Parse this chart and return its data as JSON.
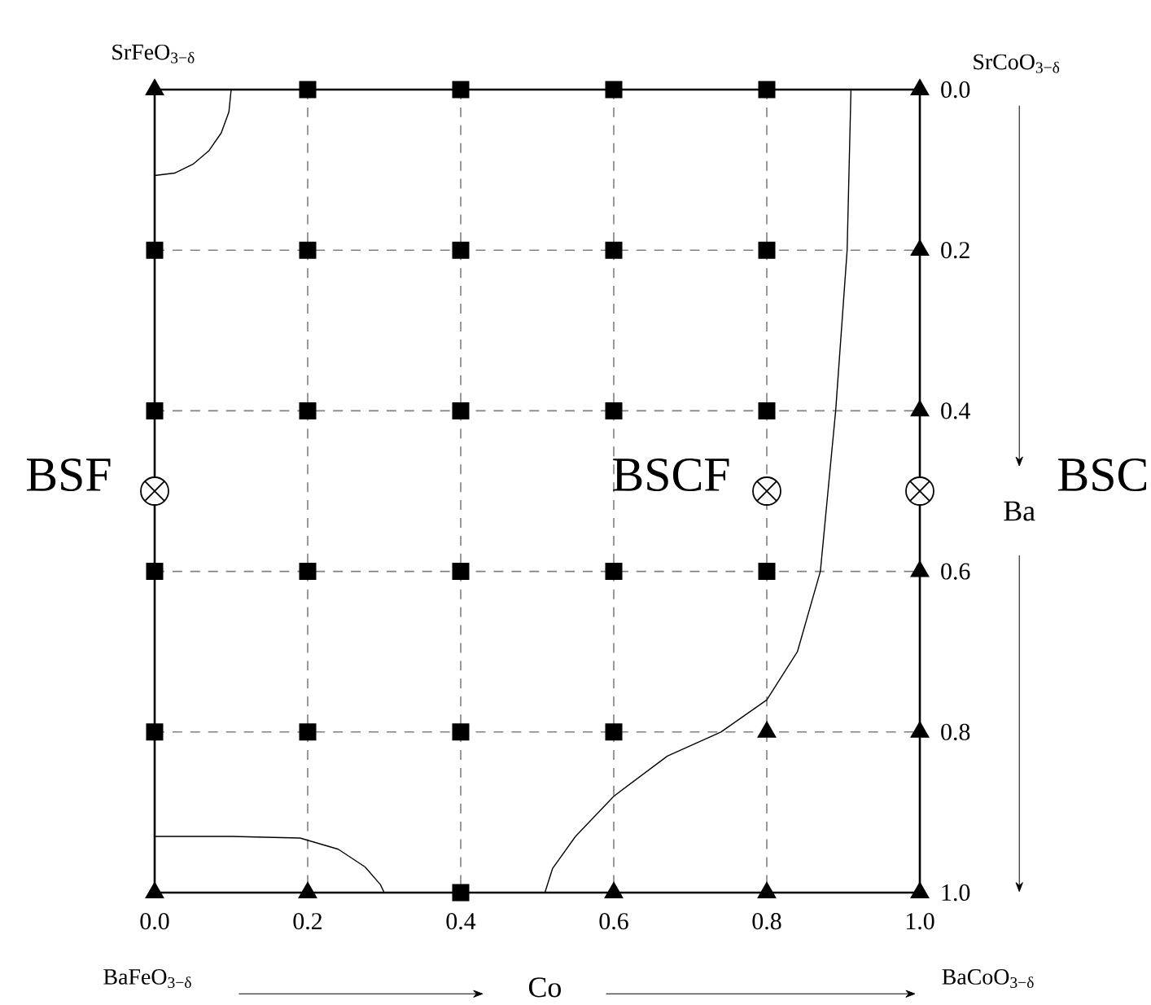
{
  "chart_data": {
    "type": "scatter",
    "xlabel": "Co",
    "ylabel": "Ba",
    "xlim": [
      0.0,
      1.0
    ],
    "ylim": [
      1.0,
      0.0
    ],
    "xticks": [
      {
        "value": 0.0,
        "label": "0.0"
      },
      {
        "value": 0.2,
        "label": "0.2"
      },
      {
        "value": 0.4,
        "label": "0.4"
      },
      {
        "value": 0.6,
        "label": "0.6"
      },
      {
        "value": 0.8,
        "label": "0.8"
      },
      {
        "value": 1.0,
        "label": "1.0"
      }
    ],
    "yticks": [
      {
        "value": 0.0,
        "label": "0.0"
      },
      {
        "value": 0.2,
        "label": "0.2"
      },
      {
        "value": 0.4,
        "label": "0.4"
      },
      {
        "value": 0.6,
        "label": "0.6"
      },
      {
        "value": 0.8,
        "label": "0.8"
      },
      {
        "value": 1.0,
        "label": "1.0"
      }
    ],
    "grid": true,
    "series": [
      {
        "marker": "square",
        "color": "#000000",
        "x": [
          0.2,
          0.4,
          0.6,
          0.8,
          0,
          0.2,
          0.4,
          0.6,
          0.8,
          0,
          0.2,
          0.4,
          0.6,
          0.8,
          0,
          0.2,
          0.4,
          0.6,
          0.8,
          0,
          0.2,
          0.4,
          0.6,
          0.4
        ],
        "values": [
          0,
          0,
          0,
          0,
          0.2,
          0.2,
          0.2,
          0.2,
          0.2,
          0.4,
          0.4,
          0.4,
          0.4,
          0.4,
          0.6,
          0.6,
          0.6,
          0.6,
          0.6,
          0.8,
          0.8,
          0.8,
          0.8,
          1.0
        ]
      },
      {
        "marker": "triangle",
        "color": "#000000",
        "x": [
          0,
          1,
          1,
          1,
          1,
          0.8,
          1,
          0,
          0.2,
          0.6,
          0.8,
          1
        ],
        "values": [
          0,
          0,
          0.2,
          0.4,
          0.6,
          0.8,
          0.8,
          1.0,
          1.0,
          1.0,
          1.0,
          1.0
        ]
      },
      {
        "marker": "cross",
        "color": "#000000",
        "x": [
          0,
          0.8,
          1
        ],
        "values": [
          0.5,
          0.5,
          0.5
        ]
      },
      {
        "type": "line",
        "marker": "none",
        "line_style": "solid",
        "color": "#000000",
        "x": [
          0.1,
          0.097,
          0.087,
          0.071,
          0.05,
          0.026,
          0
        ],
        "values": [
          0,
          0.028,
          0.054,
          0.076,
          0.093,
          0.104,
          0.107
        ]
      },
      {
        "type": "line",
        "marker": "none",
        "line_style": "solid",
        "color": "#000000",
        "x": [
          0,
          0.1,
          0.19,
          0.24,
          0.275,
          0.295,
          0.3
        ],
        "values": [
          0.93,
          0.93,
          0.932,
          0.946,
          0.968,
          0.99,
          1.0
        ]
      },
      {
        "type": "line",
        "marker": "none",
        "line_style": "solid",
        "color": "#000000",
        "x": [
          0.91,
          0.905,
          0.89,
          0.88,
          0.87,
          0.84,
          0.8,
          0.74,
          0.67,
          0.6,
          0.55,
          0.52,
          0.51
        ],
        "values": [
          0,
          0.2,
          0.4,
          0.5,
          0.6,
          0.7,
          0.76,
          0.8,
          0.83,
          0.88,
          0.93,
          0.97,
          1.0
        ]
      }
    ],
    "annotations": [
      {
        "text": "SrFeO$_{3−δ}$",
        "x": 0,
        "y": 0
      },
      {
        "text": "SrCoO$_{3−δ}$",
        "x": 1,
        "y": 0
      },
      "BaFeO$_{3−δ}$",
      "BaCoO$_{3−δ}$",
      {
        "text": "BSF",
        "x": 0,
        "y": 0.5
      },
      {
        "text": "BSCF",
        "x": 0.8,
        "y": 0.5
      },
      {
        "text": "BSC",
        "x": 1,
        "y": 0.5
      }
    ]
  }
}
